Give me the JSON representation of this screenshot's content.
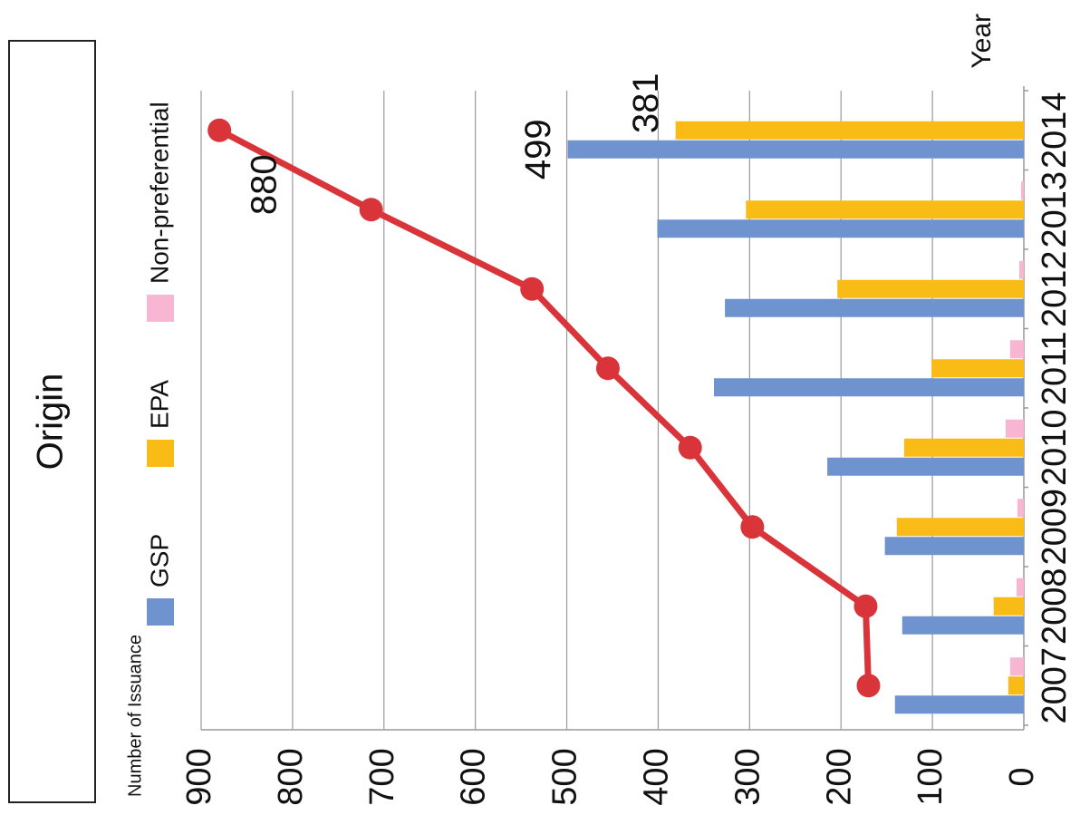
{
  "chart_data": {
    "type": "bar",
    "title": "Origin",
    "y_label": "Number of Issuance",
    "x_label": "Year",
    "categories": [
      "2007",
      "2008",
      "2009",
      "2010",
      "2011",
      "2012",
      "2013",
      "2014"
    ],
    "series": [
      {
        "name": "GSP",
        "color": "#6f93cf",
        "values": [
          141,
          133,
          152,
          215,
          339,
          327,
          401,
          499
        ]
      },
      {
        "name": "EPA",
        "color": "#f9bc16",
        "values": [
          17,
          33,
          139,
          131,
          101,
          204,
          304,
          381
        ]
      },
      {
        "name": "Non-preferential",
        "color": "#f9b6d2",
        "values": [
          15,
          8,
          7,
          20,
          15,
          5,
          3,
          0
        ]
      },
      {
        "type": "line",
        "color": "#d9343a",
        "values": [
          170,
          173,
          297,
          365,
          455,
          538,
          714,
          880
        ]
      }
    ],
    "ylim": [
      0,
      900
    ],
    "yticks": [
      0,
      100,
      200,
      300,
      400,
      500,
      600,
      700,
      800,
      900
    ],
    "grid": true,
    "rotated": true
  }
}
